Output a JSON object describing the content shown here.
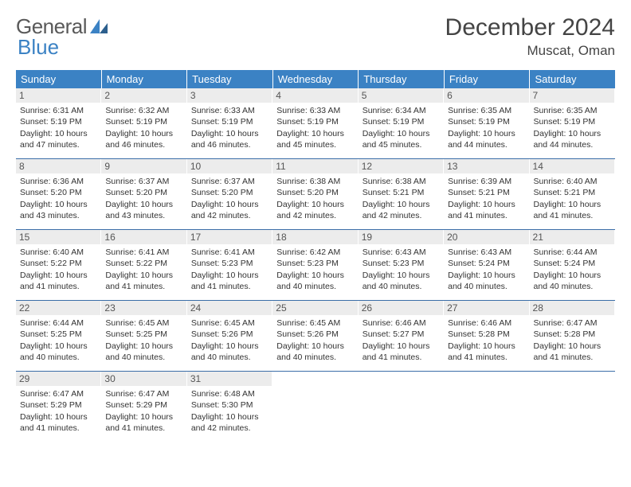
{
  "logo": {
    "word1": "General",
    "word2": "Blue"
  },
  "title": "December 2024",
  "location": "Muscat, Oman",
  "colors": {
    "header_bg": "#3b82c4",
    "header_text": "#ffffff",
    "row_border": "#3b6ea8",
    "daynum_bg": "#ececec",
    "daynum_text": "#555555",
    "body_text": "#333333",
    "page_bg": "#ffffff"
  },
  "weekdays": [
    "Sunday",
    "Monday",
    "Tuesday",
    "Wednesday",
    "Thursday",
    "Friday",
    "Saturday"
  ],
  "weeks": [
    [
      {
        "day": "1",
        "sunrise": "Sunrise: 6:31 AM",
        "sunset": "Sunset: 5:19 PM",
        "daylight1": "Daylight: 10 hours",
        "daylight2": "and 47 minutes."
      },
      {
        "day": "2",
        "sunrise": "Sunrise: 6:32 AM",
        "sunset": "Sunset: 5:19 PM",
        "daylight1": "Daylight: 10 hours",
        "daylight2": "and 46 minutes."
      },
      {
        "day": "3",
        "sunrise": "Sunrise: 6:33 AM",
        "sunset": "Sunset: 5:19 PM",
        "daylight1": "Daylight: 10 hours",
        "daylight2": "and 46 minutes."
      },
      {
        "day": "4",
        "sunrise": "Sunrise: 6:33 AM",
        "sunset": "Sunset: 5:19 PM",
        "daylight1": "Daylight: 10 hours",
        "daylight2": "and 45 minutes."
      },
      {
        "day": "5",
        "sunrise": "Sunrise: 6:34 AM",
        "sunset": "Sunset: 5:19 PM",
        "daylight1": "Daylight: 10 hours",
        "daylight2": "and 45 minutes."
      },
      {
        "day": "6",
        "sunrise": "Sunrise: 6:35 AM",
        "sunset": "Sunset: 5:19 PM",
        "daylight1": "Daylight: 10 hours",
        "daylight2": "and 44 minutes."
      },
      {
        "day": "7",
        "sunrise": "Sunrise: 6:35 AM",
        "sunset": "Sunset: 5:19 PM",
        "daylight1": "Daylight: 10 hours",
        "daylight2": "and 44 minutes."
      }
    ],
    [
      {
        "day": "8",
        "sunrise": "Sunrise: 6:36 AM",
        "sunset": "Sunset: 5:20 PM",
        "daylight1": "Daylight: 10 hours",
        "daylight2": "and 43 minutes."
      },
      {
        "day": "9",
        "sunrise": "Sunrise: 6:37 AM",
        "sunset": "Sunset: 5:20 PM",
        "daylight1": "Daylight: 10 hours",
        "daylight2": "and 43 minutes."
      },
      {
        "day": "10",
        "sunrise": "Sunrise: 6:37 AM",
        "sunset": "Sunset: 5:20 PM",
        "daylight1": "Daylight: 10 hours",
        "daylight2": "and 42 minutes."
      },
      {
        "day": "11",
        "sunrise": "Sunrise: 6:38 AM",
        "sunset": "Sunset: 5:20 PM",
        "daylight1": "Daylight: 10 hours",
        "daylight2": "and 42 minutes."
      },
      {
        "day": "12",
        "sunrise": "Sunrise: 6:38 AM",
        "sunset": "Sunset: 5:21 PM",
        "daylight1": "Daylight: 10 hours",
        "daylight2": "and 42 minutes."
      },
      {
        "day": "13",
        "sunrise": "Sunrise: 6:39 AM",
        "sunset": "Sunset: 5:21 PM",
        "daylight1": "Daylight: 10 hours",
        "daylight2": "and 41 minutes."
      },
      {
        "day": "14",
        "sunrise": "Sunrise: 6:40 AM",
        "sunset": "Sunset: 5:21 PM",
        "daylight1": "Daylight: 10 hours",
        "daylight2": "and 41 minutes."
      }
    ],
    [
      {
        "day": "15",
        "sunrise": "Sunrise: 6:40 AM",
        "sunset": "Sunset: 5:22 PM",
        "daylight1": "Daylight: 10 hours",
        "daylight2": "and 41 minutes."
      },
      {
        "day": "16",
        "sunrise": "Sunrise: 6:41 AM",
        "sunset": "Sunset: 5:22 PM",
        "daylight1": "Daylight: 10 hours",
        "daylight2": "and 41 minutes."
      },
      {
        "day": "17",
        "sunrise": "Sunrise: 6:41 AM",
        "sunset": "Sunset: 5:23 PM",
        "daylight1": "Daylight: 10 hours",
        "daylight2": "and 41 minutes."
      },
      {
        "day": "18",
        "sunrise": "Sunrise: 6:42 AM",
        "sunset": "Sunset: 5:23 PM",
        "daylight1": "Daylight: 10 hours",
        "daylight2": "and 40 minutes."
      },
      {
        "day": "19",
        "sunrise": "Sunrise: 6:43 AM",
        "sunset": "Sunset: 5:23 PM",
        "daylight1": "Daylight: 10 hours",
        "daylight2": "and 40 minutes."
      },
      {
        "day": "20",
        "sunrise": "Sunrise: 6:43 AM",
        "sunset": "Sunset: 5:24 PM",
        "daylight1": "Daylight: 10 hours",
        "daylight2": "and 40 minutes."
      },
      {
        "day": "21",
        "sunrise": "Sunrise: 6:44 AM",
        "sunset": "Sunset: 5:24 PM",
        "daylight1": "Daylight: 10 hours",
        "daylight2": "and 40 minutes."
      }
    ],
    [
      {
        "day": "22",
        "sunrise": "Sunrise: 6:44 AM",
        "sunset": "Sunset: 5:25 PM",
        "daylight1": "Daylight: 10 hours",
        "daylight2": "and 40 minutes."
      },
      {
        "day": "23",
        "sunrise": "Sunrise: 6:45 AM",
        "sunset": "Sunset: 5:25 PM",
        "daylight1": "Daylight: 10 hours",
        "daylight2": "and 40 minutes."
      },
      {
        "day": "24",
        "sunrise": "Sunrise: 6:45 AM",
        "sunset": "Sunset: 5:26 PM",
        "daylight1": "Daylight: 10 hours",
        "daylight2": "and 40 minutes."
      },
      {
        "day": "25",
        "sunrise": "Sunrise: 6:45 AM",
        "sunset": "Sunset: 5:26 PM",
        "daylight1": "Daylight: 10 hours",
        "daylight2": "and 40 minutes."
      },
      {
        "day": "26",
        "sunrise": "Sunrise: 6:46 AM",
        "sunset": "Sunset: 5:27 PM",
        "daylight1": "Daylight: 10 hours",
        "daylight2": "and 41 minutes."
      },
      {
        "day": "27",
        "sunrise": "Sunrise: 6:46 AM",
        "sunset": "Sunset: 5:28 PM",
        "daylight1": "Daylight: 10 hours",
        "daylight2": "and 41 minutes."
      },
      {
        "day": "28",
        "sunrise": "Sunrise: 6:47 AM",
        "sunset": "Sunset: 5:28 PM",
        "daylight1": "Daylight: 10 hours",
        "daylight2": "and 41 minutes."
      }
    ],
    [
      {
        "day": "29",
        "sunrise": "Sunrise: 6:47 AM",
        "sunset": "Sunset: 5:29 PM",
        "daylight1": "Daylight: 10 hours",
        "daylight2": "and 41 minutes."
      },
      {
        "day": "30",
        "sunrise": "Sunrise: 6:47 AM",
        "sunset": "Sunset: 5:29 PM",
        "daylight1": "Daylight: 10 hours",
        "daylight2": "and 41 minutes."
      },
      {
        "day": "31",
        "sunrise": "Sunrise: 6:48 AM",
        "sunset": "Sunset: 5:30 PM",
        "daylight1": "Daylight: 10 hours",
        "daylight2": "and 42 minutes."
      },
      null,
      null,
      null,
      null
    ]
  ]
}
